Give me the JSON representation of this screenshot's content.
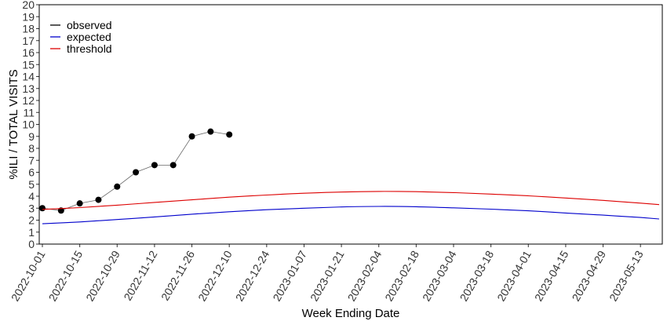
{
  "chart_data": {
    "type": "line",
    "title": "",
    "xlabel": "Week Ending Date",
    "ylabel": "%ILI / TOTAL VISITS",
    "ylim": [
      0,
      20
    ],
    "y_ticks": [
      0,
      1,
      2,
      3,
      4,
      5,
      6,
      7,
      8,
      9,
      10,
      11,
      12,
      13,
      14,
      15,
      16,
      17,
      18,
      19,
      20
    ],
    "x_range": [
      "2022-10-01",
      "2023-05-20"
    ],
    "x_ticks": [
      "2022-10-01",
      "2022-10-15",
      "2022-10-29",
      "2022-11-12",
      "2022-11-26",
      "2022-12-10",
      "2022-12-24",
      "2023-01-07",
      "2023-01-21",
      "2023-02-04",
      "2023-02-18",
      "2023-03-04",
      "2023-03-18",
      "2023-04-01",
      "2023-04-15",
      "2023-04-29",
      "2023-05-13"
    ],
    "grid": false,
    "legend_position": "top-left",
    "series": [
      {
        "name": "observed",
        "color": "#000000",
        "style": "line+points",
        "x": [
          "2022-10-01",
          "2022-10-08",
          "2022-10-15",
          "2022-10-22",
          "2022-10-29",
          "2022-11-05",
          "2022-11-12",
          "2022-11-19",
          "2022-11-26",
          "2022-12-03",
          "2022-12-10"
        ],
        "y": [
          3.0,
          2.8,
          3.4,
          3.7,
          4.8,
          6.0,
          6.6,
          6.6,
          9.0,
          9.4,
          9.15
        ]
      },
      {
        "name": "expected",
        "color": "#0000cc",
        "style": "line",
        "x": [
          "2022-10-01",
          "2022-10-15",
          "2022-10-29",
          "2022-11-12",
          "2022-11-26",
          "2022-12-10",
          "2022-12-24",
          "2023-01-07",
          "2023-01-21",
          "2023-02-04",
          "2023-02-18",
          "2023-03-04",
          "2023-03-18",
          "2023-04-01",
          "2023-04-15",
          "2023-04-29",
          "2023-05-13",
          "2023-05-20"
        ],
        "y": [
          1.7,
          1.85,
          2.05,
          2.27,
          2.5,
          2.7,
          2.87,
          3.0,
          3.1,
          3.15,
          3.12,
          3.03,
          2.92,
          2.78,
          2.6,
          2.42,
          2.22,
          2.1
        ]
      },
      {
        "name": "threshold",
        "color": "#dd0000",
        "style": "line",
        "x": [
          "2022-10-01",
          "2022-10-15",
          "2022-10-29",
          "2022-11-12",
          "2022-11-26",
          "2022-12-10",
          "2022-12-24",
          "2023-01-07",
          "2023-01-21",
          "2023-02-04",
          "2023-02-18",
          "2023-03-04",
          "2023-03-18",
          "2023-04-01",
          "2023-04-15",
          "2023-04-29",
          "2023-05-13",
          "2023-05-20"
        ],
        "y": [
          2.9,
          3.05,
          3.25,
          3.48,
          3.7,
          3.92,
          4.1,
          4.25,
          4.35,
          4.4,
          4.38,
          4.3,
          4.18,
          4.03,
          3.85,
          3.65,
          3.42,
          3.3
        ]
      }
    ]
  }
}
